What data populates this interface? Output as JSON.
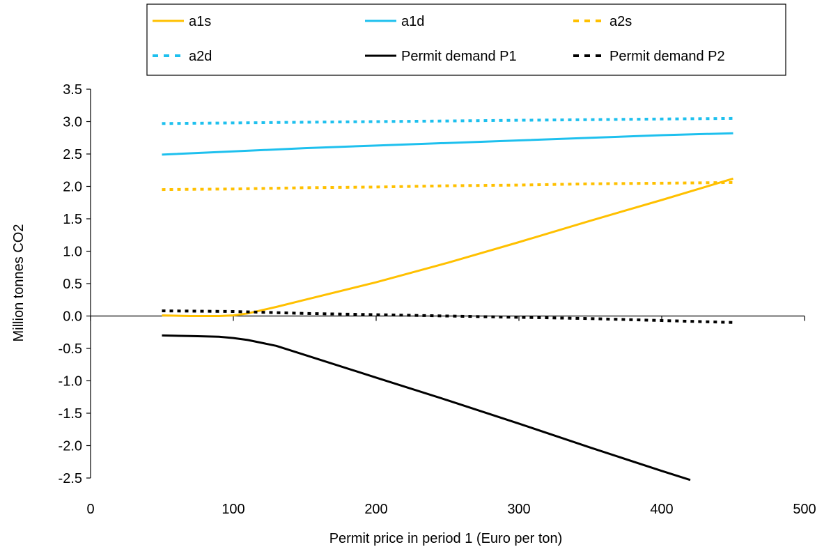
{
  "chart_data": {
    "type": "line",
    "title": "",
    "xlabel": "Permit price in period 1 (Euro per ton)",
    "ylabel": "Million tonnes CO2",
    "xlim": [
      0,
      500
    ],
    "ylim": [
      -2.5,
      3.5
    ],
    "xticks": [
      0,
      100,
      200,
      300,
      400,
      500
    ],
    "xtick_labels": [
      "0",
      "100",
      "200",
      "300",
      "400",
      "500"
    ],
    "yticks": [
      3.5,
      3.0,
      2.5,
      2.0,
      1.5,
      1.0,
      0.5,
      0.0,
      -0.5,
      -1.0,
      -1.5,
      -2.0,
      -2.5
    ],
    "ytick_labels": [
      "3.5",
      "3.0",
      "2.5",
      "2.0",
      "1.5",
      "1.0",
      "0.5",
      "0.0",
      "-0.5",
      "-1.0",
      "-1.5",
      "-2.0",
      "-2.5"
    ],
    "grid": false,
    "legend_position": "top",
    "series": [
      {
        "name": "a1s",
        "color": "#FFC000",
        "dash": "solid",
        "x": [
          50,
          70,
          90,
          100,
          110,
          130,
          150,
          200,
          250,
          300,
          350,
          400,
          450
        ],
        "y": [
          0.01,
          0.0,
          0.0,
          0.01,
          0.04,
          0.14,
          0.25,
          0.52,
          0.82,
          1.14,
          1.47,
          1.79,
          2.12
        ]
      },
      {
        "name": "a1d",
        "color": "#1EC0EE",
        "dash": "solid",
        "x": [
          50,
          100,
          150,
          200,
          250,
          300,
          350,
          400,
          450
        ],
        "y": [
          2.49,
          2.54,
          2.59,
          2.63,
          2.67,
          2.71,
          2.75,
          2.79,
          2.82
        ]
      },
      {
        "name": "a2s",
        "color": "#FFC000",
        "dash": "dot",
        "x": [
          50,
          100,
          150,
          200,
          250,
          300,
          350,
          400,
          450
        ],
        "y": [
          1.95,
          1.96,
          1.98,
          1.99,
          2.01,
          2.02,
          2.04,
          2.05,
          2.06
        ]
      },
      {
        "name": "a2d",
        "color": "#1EC0EE",
        "dash": "dot",
        "x": [
          50,
          100,
          150,
          200,
          250,
          300,
          350,
          400,
          450
        ],
        "y": [
          2.97,
          2.98,
          2.99,
          3.0,
          3.01,
          3.02,
          3.03,
          3.04,
          3.05
        ]
      },
      {
        "name": "Permit demand P1",
        "color": "#000000",
        "dash": "solid",
        "x": [
          50,
          70,
          90,
          100,
          110,
          130,
          150,
          200,
          250,
          300,
          350,
          400,
          420
        ],
        "y": [
          -0.3,
          -0.31,
          -0.32,
          -0.34,
          -0.37,
          -0.46,
          -0.6,
          -0.95,
          -1.3,
          -1.66,
          -2.03,
          -2.39,
          -2.53
        ]
      },
      {
        "name": "Permit demand P2",
        "color": "#000000",
        "dash": "dot",
        "x": [
          50,
          100,
          150,
          200,
          250,
          300,
          350,
          400,
          450
        ],
        "y": [
          0.08,
          0.07,
          0.04,
          0.02,
          0.0,
          -0.02,
          -0.04,
          -0.07,
          -0.1
        ]
      }
    ]
  }
}
